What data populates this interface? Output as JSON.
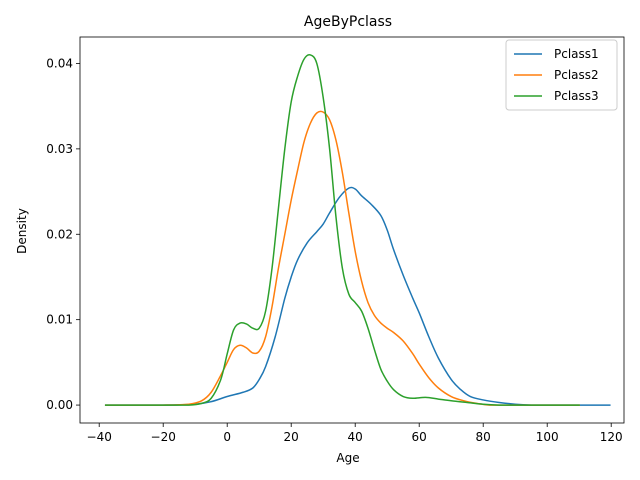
{
  "chart_data": {
    "type": "line",
    "title": "AgeByPclass",
    "xlabel": "Age",
    "ylabel": "Density",
    "xlim": [
      -46,
      124
    ],
    "ylim": [
      -0.0021,
      0.0431
    ],
    "xticks": [
      -40,
      -20,
      0,
      20,
      40,
      60,
      80,
      100,
      120
    ],
    "yticks": [
      0.0,
      0.01,
      0.02,
      0.03,
      0.04
    ],
    "ytick_labels": [
      "0.00",
      "0.01",
      "0.02",
      "0.03",
      "0.04"
    ],
    "grid": false,
    "legend_position": "top-right",
    "series": [
      {
        "name": "Pclass1",
        "color": "#1f77b4",
        "points": [
          [
            -38.2,
            0.0
          ],
          [
            -20,
            0.0
          ],
          [
            -10,
            0.0001
          ],
          [
            -5,
            0.0004
          ],
          [
            0,
            0.001
          ],
          [
            5,
            0.0015
          ],
          [
            8,
            0.002
          ],
          [
            10,
            0.003
          ],
          [
            12,
            0.0045
          ],
          [
            15,
            0.008
          ],
          [
            18,
            0.0125
          ],
          [
            20,
            0.015
          ],
          [
            22,
            0.017
          ],
          [
            25,
            0.019
          ],
          [
            28,
            0.0203
          ],
          [
            30,
            0.0212
          ],
          [
            32,
            0.0225
          ],
          [
            35,
            0.0243
          ],
          [
            38,
            0.0254
          ],
          [
            40,
            0.0253
          ],
          [
            42,
            0.0245
          ],
          [
            45,
            0.0235
          ],
          [
            48,
            0.0222
          ],
          [
            50,
            0.0205
          ],
          [
            52,
            0.0182
          ],
          [
            55,
            0.0152
          ],
          [
            58,
            0.0125
          ],
          [
            60,
            0.0108
          ],
          [
            63,
            0.008
          ],
          [
            66,
            0.0055
          ],
          [
            70,
            0.003
          ],
          [
            73,
            0.0018
          ],
          [
            76,
            0.001
          ],
          [
            80,
            0.0006
          ],
          [
            85,
            0.0003
          ],
          [
            90,
            0.0001
          ],
          [
            95,
            0.0
          ],
          [
            100,
            0.0
          ],
          [
            110,
            0.0
          ],
          [
            119.8,
            0.0
          ]
        ]
      },
      {
        "name": "Pclass2",
        "color": "#ff7f0e",
        "points": [
          [
            -38.2,
            0.0
          ],
          [
            -20,
            0.0
          ],
          [
            -12,
            0.0001
          ],
          [
            -8,
            0.0005
          ],
          [
            -5,
            0.0015
          ],
          [
            -2,
            0.0035
          ],
          [
            0,
            0.005
          ],
          [
            2,
            0.0065
          ],
          [
            4,
            0.007
          ],
          [
            6,
            0.0067
          ],
          [
            8,
            0.0061
          ],
          [
            10,
            0.0063
          ],
          [
            12,
            0.008
          ],
          [
            14,
            0.0115
          ],
          [
            16,
            0.016
          ],
          [
            18,
            0.02
          ],
          [
            20,
            0.024
          ],
          [
            22,
            0.0275
          ],
          [
            24,
            0.0308
          ],
          [
            26,
            0.033
          ],
          [
            28,
            0.0342
          ],
          [
            30,
            0.0343
          ],
          [
            32,
            0.0334
          ],
          [
            34,
            0.031
          ],
          [
            36,
            0.0272
          ],
          [
            38,
            0.0225
          ],
          [
            40,
            0.018
          ],
          [
            42,
            0.0145
          ],
          [
            44,
            0.012
          ],
          [
            46,
            0.0105
          ],
          [
            48,
            0.0096
          ],
          [
            50,
            0.009
          ],
          [
            52,
            0.0085
          ],
          [
            55,
            0.0075
          ],
          [
            58,
            0.006
          ],
          [
            60,
            0.0048
          ],
          [
            63,
            0.0032
          ],
          [
            66,
            0.002
          ],
          [
            70,
            0.001
          ],
          [
            74,
            0.0005
          ],
          [
            78,
            0.0002
          ],
          [
            82,
            0.0
          ],
          [
            90,
            0.0
          ],
          [
            100,
            0.0
          ],
          [
            110.2,
            0.0
          ]
        ]
      },
      {
        "name": "Pclass3",
        "color": "#2ca02c",
        "points": [
          [
            -38.2,
            0.0
          ],
          [
            -20,
            0.0
          ],
          [
            -12,
            0.0
          ],
          [
            -8,
            0.0002
          ],
          [
            -5,
            0.0008
          ],
          [
            -2,
            0.003
          ],
          [
            0,
            0.006
          ],
          [
            2,
            0.0088
          ],
          [
            4,
            0.0096
          ],
          [
            6,
            0.0095
          ],
          [
            8,
            0.009
          ],
          [
            10,
            0.009
          ],
          [
            12,
            0.011
          ],
          [
            14,
            0.016
          ],
          [
            16,
            0.023
          ],
          [
            18,
            0.03
          ],
          [
            20,
            0.0355
          ],
          [
            22,
            0.0385
          ],
          [
            24,
            0.0405
          ],
          [
            26,
            0.041
          ],
          [
            28,
            0.04
          ],
          [
            30,
            0.036
          ],
          [
            32,
            0.03
          ],
          [
            34,
            0.022
          ],
          [
            36,
            0.016
          ],
          [
            38,
            0.013
          ],
          [
            40,
            0.012
          ],
          [
            42,
            0.011
          ],
          [
            44,
            0.009
          ],
          [
            46,
            0.0065
          ],
          [
            48,
            0.0042
          ],
          [
            50,
            0.0028
          ],
          [
            52,
            0.0018
          ],
          [
            55,
            0.001
          ],
          [
            58,
            0.0008
          ],
          [
            62,
            0.0009
          ],
          [
            66,
            0.0007
          ],
          [
            70,
            0.0005
          ],
          [
            75,
            0.0003
          ],
          [
            80,
            0.0001
          ],
          [
            85,
            0.0
          ],
          [
            90,
            0.0
          ],
          [
            95,
            0.0
          ],
          [
            100,
            0.0
          ],
          [
            110.2,
            0.0
          ]
        ]
      }
    ]
  }
}
